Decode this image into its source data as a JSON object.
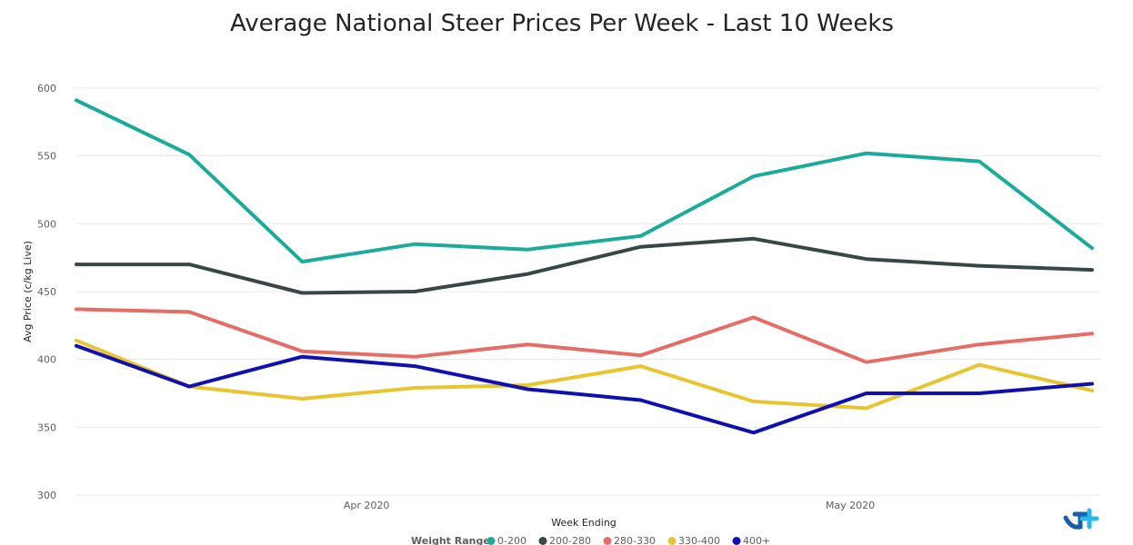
{
  "chart_data": {
    "type": "line",
    "title": "Average National Steer Prices Per Week - Last 10 Weeks",
    "xlabel": "Week Ending",
    "ylabel": "Avg Price (c/kg Live)",
    "ylim": [
      300,
      600
    ],
    "yticks": [
      300,
      350,
      400,
      450,
      500,
      550,
      600
    ],
    "x": [
      "2020-03-14",
      "2020-03-21",
      "2020-03-28",
      "2020-04-04",
      "2020-04-11",
      "2020-04-18",
      "2020-04-25",
      "2020-05-02",
      "2020-05-09",
      "2020-05-16"
    ],
    "xticks": [
      {
        "label": "Apr 2020",
        "date": "2020-04-01"
      },
      {
        "label": "May 2020",
        "date": "2020-05-01"
      }
    ],
    "grid": true,
    "legend": {
      "title": "Weight Range",
      "position": "bottom"
    },
    "series": [
      {
        "name": "0-200",
        "color": "#1aab9b",
        "values": [
          591,
          551,
          472,
          485,
          481,
          491,
          535,
          552,
          546,
          482
        ]
      },
      {
        "name": "200-280",
        "color": "#374649",
        "values": [
          470,
          470,
          449,
          450,
          463,
          483,
          489,
          474,
          469,
          466
        ]
      },
      {
        "name": "280-330",
        "color": "#e66c66",
        "values": [
          437,
          435,
          406,
          402,
          411,
          403,
          431,
          398,
          411,
          419
        ]
      },
      {
        "name": "330-400",
        "color": "#e8c42e",
        "values": [
          414,
          380,
          371,
          379,
          381,
          395,
          369,
          364,
          396,
          377
        ]
      },
      {
        "name": "400+",
        "color": "#1010b0",
        "values": [
          410,
          380,
          402,
          395,
          378,
          370,
          346,
          375,
          375,
          382
        ]
      }
    ]
  },
  "logo": {
    "icon": "logo-icon",
    "colors": [
      "#1a5fa8",
      "#2ab8e8"
    ]
  }
}
